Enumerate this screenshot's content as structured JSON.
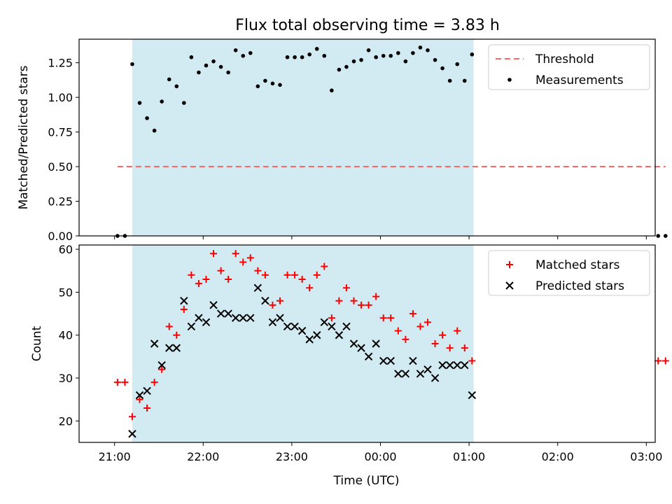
{
  "figure": {
    "title": "Flux total observing time = 3.83 h"
  },
  "chart_data": [
    {
      "type": "scatter",
      "panel": "top",
      "xlabel": "",
      "ylabel": "Matched/Predicted stars",
      "yticks": [
        "0.00",
        "0.25",
        "0.50",
        "0.75",
        "1.00",
        "1.25"
      ],
      "ylim": [
        0,
        1.42
      ],
      "xlim_hours": [
        20.6,
        27.1
      ],
      "observing_window": [
        "21:12",
        "01:03"
      ],
      "shade_color": "#add8e6",
      "threshold": {
        "name": "Threshold",
        "value": 0.5,
        "x_start": "21:02",
        "x_end": "03:13",
        "color": "#ff6666"
      },
      "series": [
        {
          "name": "Measurements",
          "color": "#000000",
          "x": [
            "21:02",
            "21:07",
            "21:12",
            "21:17",
            "21:22",
            "21:27",
            "21:32",
            "21:37",
            "21:42",
            "21:47",
            "21:52",
            "21:57",
            "22:02",
            "22:07",
            "22:12",
            "22:17",
            "22:22",
            "22:27",
            "22:32",
            "22:37",
            "22:42",
            "22:47",
            "22:52",
            "22:57",
            "23:02",
            "23:07",
            "23:12",
            "23:17",
            "23:22",
            "23:27",
            "23:32",
            "23:37",
            "23:42",
            "23:47",
            "23:52",
            "23:57",
            "00:02",
            "00:07",
            "00:12",
            "00:17",
            "00:22",
            "00:27",
            "00:32",
            "00:37",
            "00:42",
            "00:47",
            "00:52",
            "00:57",
            "01:02",
            "03:08",
            "03:13"
          ],
          "y": [
            0.0,
            0.0,
            1.24,
            0.96,
            0.85,
            0.76,
            0.97,
            1.13,
            1.08,
            0.96,
            1.29,
            1.18,
            1.23,
            1.26,
            1.22,
            1.18,
            1.34,
            1.3,
            1.32,
            1.08,
            1.12,
            1.1,
            1.09,
            1.29,
            1.29,
            1.29,
            1.31,
            1.35,
            1.3,
            1.05,
            1.2,
            1.22,
            1.26,
            1.27,
            1.34,
            1.29,
            1.3,
            1.3,
            1.32,
            1.26,
            1.32,
            1.36,
            1.34,
            1.27,
            1.21,
            1.12,
            1.24,
            1.12,
            1.31,
            0.0,
            0.0
          ]
        }
      ],
      "legend": {
        "location": "upper right",
        "entries": [
          "Threshold",
          "Measurements"
        ]
      }
    },
    {
      "type": "scatter",
      "panel": "bottom",
      "xlabel": "Time (UTC)",
      "ylabel": "Count",
      "xticks": [
        "21:00",
        "22:00",
        "23:00",
        "00:00",
        "01:00",
        "02:00",
        "03:00"
      ],
      "yticks": [
        "20",
        "30",
        "40",
        "50",
        "60"
      ],
      "ylim": [
        15,
        61
      ],
      "xlim_hours": [
        20.6,
        27.1
      ],
      "observing_window": [
        "21:12",
        "01:03"
      ],
      "shade_color": "#add8e6",
      "series": [
        {
          "name": "Matched stars",
          "marker": "+",
          "color": "#ff0000",
          "x": [
            "21:02",
            "21:07",
            "21:12",
            "21:17",
            "21:22",
            "21:27",
            "21:32",
            "21:37",
            "21:42",
            "21:47",
            "21:52",
            "21:57",
            "22:02",
            "22:07",
            "22:12",
            "22:17",
            "22:22",
            "22:27",
            "22:32",
            "22:37",
            "22:42",
            "22:47",
            "22:52",
            "22:57",
            "23:02",
            "23:07",
            "23:12",
            "23:17",
            "23:22",
            "23:27",
            "23:32",
            "23:37",
            "23:42",
            "23:47",
            "23:52",
            "23:57",
            "00:02",
            "00:07",
            "00:12",
            "00:17",
            "00:22",
            "00:27",
            "00:32",
            "00:37",
            "00:42",
            "00:47",
            "00:52",
            "00:57",
            "01:02",
            "03:08",
            "03:13"
          ],
          "y": [
            29,
            29,
            21,
            25,
            23,
            29,
            32,
            42,
            40,
            46,
            54,
            52,
            53,
            59,
            55,
            53,
            59,
            57,
            58,
            55,
            54,
            47,
            48,
            54,
            54,
            53,
            51,
            54,
            56,
            44,
            48,
            51,
            48,
            47,
            47,
            49,
            44,
            44,
            41,
            39,
            45,
            42,
            43,
            38,
            40,
            37,
            41,
            37,
            34,
            34,
            34
          ]
        },
        {
          "name": "Predicted stars",
          "marker": "x",
          "color": "#000000",
          "x": [
            "21:12",
            "21:17",
            "21:22",
            "21:27",
            "21:32",
            "21:37",
            "21:42",
            "21:47",
            "21:52",
            "21:57",
            "22:02",
            "22:07",
            "22:12",
            "22:17",
            "22:22",
            "22:27",
            "22:32",
            "22:37",
            "22:42",
            "22:47",
            "22:52",
            "22:57",
            "23:02",
            "23:07",
            "23:12",
            "23:17",
            "23:22",
            "23:27",
            "23:32",
            "23:37",
            "23:42",
            "23:47",
            "23:52",
            "23:57",
            "00:02",
            "00:07",
            "00:12",
            "00:17",
            "00:22",
            "00:27",
            "00:32",
            "00:37",
            "00:42",
            "00:47",
            "00:52",
            "00:57",
            "01:02"
          ],
          "y": [
            17,
            26,
            27,
            38,
            33,
            37,
            37,
            48,
            42,
            44,
            43,
            47,
            45,
            45,
            44,
            44,
            44,
            51,
            48,
            43,
            44,
            42,
            42,
            41,
            39,
            40,
            43,
            42,
            40,
            42,
            38,
            37,
            35,
            38,
            34,
            34,
            31,
            31,
            34,
            31,
            32,
            30,
            33,
            33,
            33,
            33,
            26
          ]
        }
      ],
      "legend": {
        "location": "upper right",
        "entries": [
          "Matched stars",
          "Predicted stars"
        ]
      }
    }
  ]
}
